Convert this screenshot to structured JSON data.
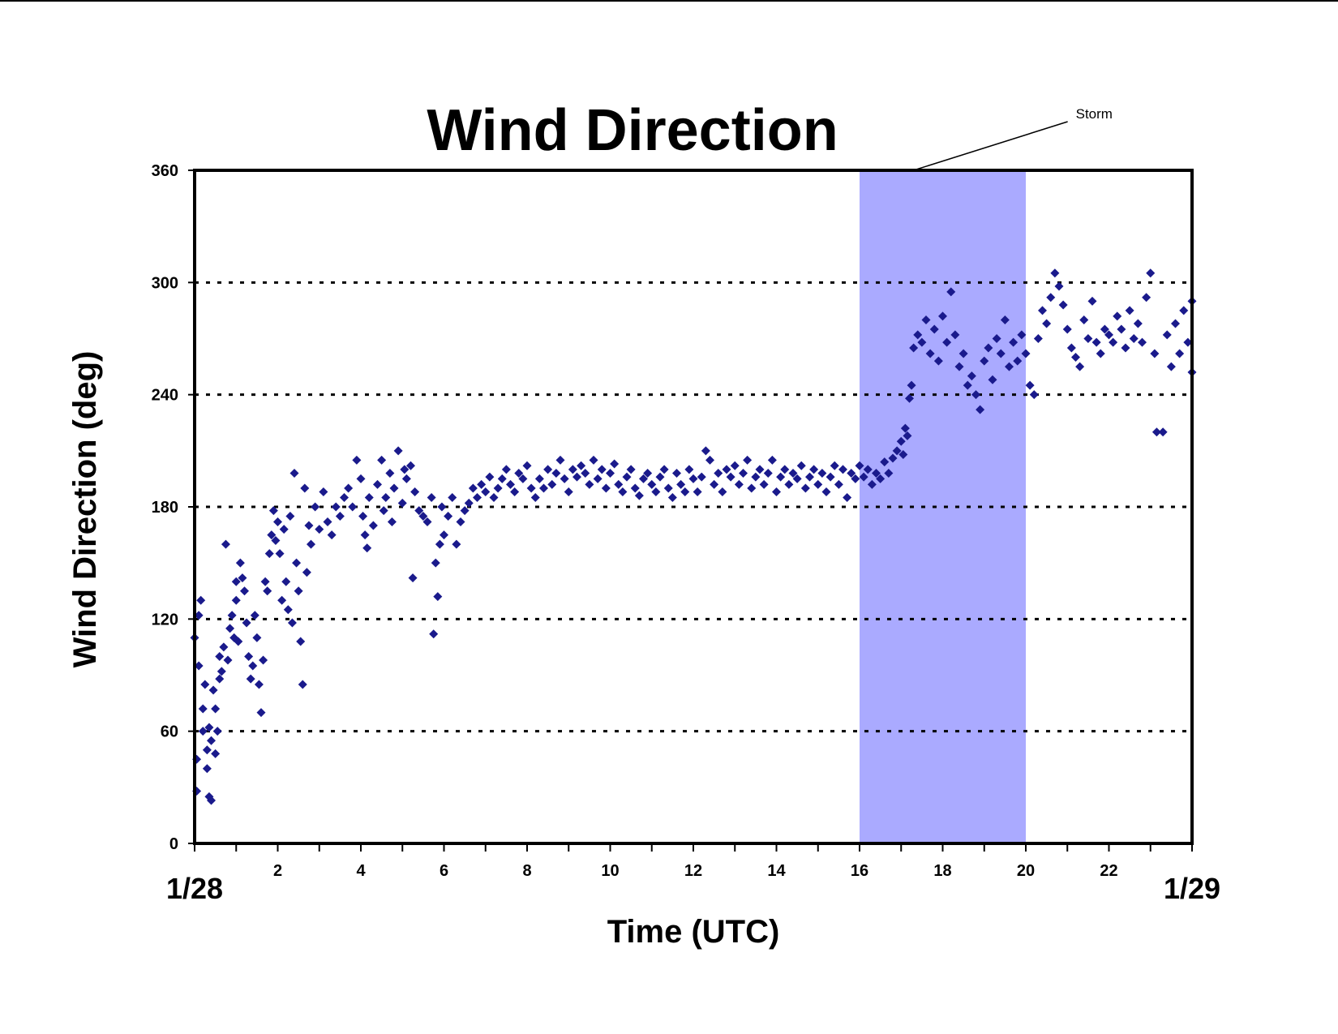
{
  "chart_data": {
    "type": "scatter",
    "title": "Wind Direction",
    "xlabel": "Time (UTC)",
    "ylabel": "Wind Direction (deg)",
    "xlim": [
      0,
      24
    ],
    "ylim": [
      0,
      360
    ],
    "x_ticks": [
      2,
      4,
      6,
      8,
      10,
      12,
      14,
      16,
      18,
      20,
      22
    ],
    "x_tick_labels": [
      "2",
      "4",
      "6",
      "8",
      "10",
      "12",
      "14",
      "16",
      "18",
      "20",
      "22"
    ],
    "x_minor_step": 1,
    "date_labels": [
      {
        "x": 0,
        "text": "1/28"
      },
      {
        "x": 24,
        "text": "1/29"
      }
    ],
    "y_ticks": [
      0,
      60,
      120,
      180,
      240,
      300,
      360
    ],
    "y_tick_labels": [
      "0",
      "60",
      "120",
      "180",
      "240",
      "300",
      "360"
    ],
    "grid": "horizontal dotted at 60, 120, 180, 240, 300",
    "legend": "none",
    "marker_color": "#1a1a8c",
    "marker": "diamond",
    "shaded_region": {
      "x_start": 16,
      "x_end": 20,
      "color": "#aaaaff"
    },
    "annotation": {
      "text": "Storm",
      "x": 17.3,
      "y": 360
    },
    "series": [
      {
        "points": [
          [
            0.0,
            110
          ],
          [
            0.05,
            28
          ],
          [
            0.05,
            45
          ],
          [
            0.1,
            95
          ],
          [
            0.1,
            122
          ],
          [
            0.15,
            130
          ],
          [
            0.2,
            72
          ],
          [
            0.2,
            60
          ],
          [
            0.25,
            85
          ],
          [
            0.3,
            50
          ],
          [
            0.3,
            40
          ],
          [
            0.35,
            25
          ],
          [
            0.35,
            62
          ],
          [
            0.4,
            23
          ],
          [
            0.4,
            55
          ],
          [
            0.45,
            82
          ],
          [
            0.5,
            48
          ],
          [
            0.5,
            72
          ],
          [
            0.55,
            60
          ],
          [
            0.6,
            88
          ],
          [
            0.6,
            100
          ],
          [
            0.65,
            92
          ],
          [
            0.7,
            105
          ],
          [
            0.75,
            160
          ],
          [
            0.8,
            98
          ],
          [
            0.85,
            115
          ],
          [
            0.9,
            122
          ],
          [
            0.95,
            110
          ],
          [
            1.0,
            140
          ],
          [
            1.0,
            130
          ],
          [
            1.05,
            108
          ],
          [
            1.1,
            150
          ],
          [
            1.15,
            142
          ],
          [
            1.2,
            135
          ],
          [
            1.25,
            118
          ],
          [
            1.3,
            100
          ],
          [
            1.35,
            88
          ],
          [
            1.4,
            95
          ],
          [
            1.45,
            122
          ],
          [
            1.5,
            110
          ],
          [
            1.55,
            85
          ],
          [
            1.6,
            70
          ],
          [
            1.65,
            98
          ],
          [
            1.7,
            140
          ],
          [
            1.75,
            135
          ],
          [
            1.8,
            155
          ],
          [
            1.85,
            165
          ],
          [
            1.9,
            178
          ],
          [
            1.95,
            162
          ],
          [
            2.0,
            172
          ],
          [
            2.05,
            155
          ],
          [
            2.1,
            130
          ],
          [
            2.15,
            168
          ],
          [
            2.2,
            140
          ],
          [
            2.25,
            125
          ],
          [
            2.3,
            175
          ],
          [
            2.35,
            118
          ],
          [
            2.4,
            198
          ],
          [
            2.45,
            150
          ],
          [
            2.5,
            135
          ],
          [
            2.55,
            108
          ],
          [
            2.6,
            85
          ],
          [
            2.65,
            190
          ],
          [
            2.7,
            145
          ],
          [
            2.75,
            170
          ],
          [
            2.8,
            160
          ],
          [
            2.9,
            180
          ],
          [
            3.0,
            168
          ],
          [
            3.1,
            188
          ],
          [
            3.2,
            172
          ],
          [
            3.3,
            165
          ],
          [
            3.4,
            180
          ],
          [
            3.5,
            175
          ],
          [
            3.6,
            185
          ],
          [
            3.7,
            190
          ],
          [
            3.8,
            180
          ],
          [
            3.9,
            205
          ],
          [
            4.0,
            195
          ],
          [
            4.05,
            175
          ],
          [
            4.1,
            165
          ],
          [
            4.15,
            158
          ],
          [
            4.2,
            185
          ],
          [
            4.3,
            170
          ],
          [
            4.4,
            192
          ],
          [
            4.5,
            205
          ],
          [
            4.55,
            178
          ],
          [
            4.6,
            185
          ],
          [
            4.7,
            198
          ],
          [
            4.75,
            172
          ],
          [
            4.8,
            190
          ],
          [
            4.9,
            210
          ],
          [
            5.0,
            182
          ],
          [
            5.05,
            200
          ],
          [
            5.1,
            195
          ],
          [
            5.2,
            202
          ],
          [
            5.25,
            142
          ],
          [
            5.3,
            188
          ],
          [
            5.4,
            178
          ],
          [
            5.5,
            175
          ],
          [
            5.6,
            172
          ],
          [
            5.7,
            185
          ],
          [
            5.75,
            112
          ],
          [
            5.8,
            150
          ],
          [
            5.85,
            132
          ],
          [
            5.9,
            160
          ],
          [
            5.95,
            180
          ],
          [
            6.0,
            165
          ],
          [
            6.1,
            175
          ],
          [
            6.2,
            185
          ],
          [
            6.3,
            160
          ],
          [
            6.4,
            172
          ],
          [
            6.5,
            178
          ],
          [
            6.6,
            182
          ],
          [
            6.7,
            190
          ],
          [
            6.8,
            185
          ],
          [
            6.9,
            192
          ],
          [
            7.0,
            188
          ],
          [
            7.1,
            196
          ],
          [
            7.2,
            185
          ],
          [
            7.3,
            190
          ],
          [
            7.4,
            195
          ],
          [
            7.5,
            200
          ],
          [
            7.6,
            192
          ],
          [
            7.7,
            188
          ],
          [
            7.8,
            198
          ],
          [
            7.9,
            195
          ],
          [
            8.0,
            202
          ],
          [
            8.1,
            190
          ],
          [
            8.2,
            185
          ],
          [
            8.3,
            195
          ],
          [
            8.4,
            190
          ],
          [
            8.5,
            200
          ],
          [
            8.6,
            192
          ],
          [
            8.7,
            198
          ],
          [
            8.8,
            205
          ],
          [
            8.9,
            195
          ],
          [
            9.0,
            188
          ],
          [
            9.1,
            200
          ],
          [
            9.2,
            196
          ],
          [
            9.3,
            202
          ],
          [
            9.4,
            198
          ],
          [
            9.5,
            192
          ],
          [
            9.6,
            205
          ],
          [
            9.7,
            195
          ],
          [
            9.8,
            200
          ],
          [
            9.9,
            190
          ],
          [
            10.0,
            198
          ],
          [
            10.1,
            203
          ],
          [
            10.2,
            192
          ],
          [
            10.3,
            188
          ],
          [
            10.4,
            196
          ],
          [
            10.5,
            200
          ],
          [
            10.6,
            190
          ],
          [
            10.7,
            186
          ],
          [
            10.8,
            195
          ],
          [
            10.9,
            198
          ],
          [
            11.0,
            192
          ],
          [
            11.1,
            188
          ],
          [
            11.2,
            196
          ],
          [
            11.3,
            200
          ],
          [
            11.4,
            190
          ],
          [
            11.5,
            185
          ],
          [
            11.6,
            198
          ],
          [
            11.7,
            192
          ],
          [
            11.8,
            188
          ],
          [
            11.9,
            200
          ],
          [
            12.0,
            195
          ],
          [
            12.1,
            188
          ],
          [
            12.2,
            196
          ],
          [
            12.3,
            210
          ],
          [
            12.4,
            205
          ],
          [
            12.5,
            192
          ],
          [
            12.6,
            198
          ],
          [
            12.7,
            188
          ],
          [
            12.8,
            200
          ],
          [
            12.9,
            196
          ],
          [
            13.0,
            202
          ],
          [
            13.1,
            192
          ],
          [
            13.2,
            198
          ],
          [
            13.3,
            205
          ],
          [
            13.4,
            190
          ],
          [
            13.5,
            196
          ],
          [
            13.6,
            200
          ],
          [
            13.7,
            192
          ],
          [
            13.8,
            198
          ],
          [
            13.9,
            205
          ],
          [
            14.0,
            188
          ],
          [
            14.1,
            196
          ],
          [
            14.2,
            200
          ],
          [
            14.3,
            192
          ],
          [
            14.4,
            198
          ],
          [
            14.5,
            195
          ],
          [
            14.6,
            202
          ],
          [
            14.7,
            190
          ],
          [
            14.8,
            196
          ],
          [
            14.9,
            200
          ],
          [
            15.0,
            192
          ],
          [
            15.1,
            198
          ],
          [
            15.2,
            188
          ],
          [
            15.3,
            196
          ],
          [
            15.4,
            202
          ],
          [
            15.5,
            192
          ],
          [
            15.6,
            200
          ],
          [
            15.7,
            185
          ],
          [
            15.8,
            198
          ],
          [
            15.9,
            195
          ],
          [
            16.0,
            202
          ],
          [
            16.1,
            196
          ],
          [
            16.2,
            200
          ],
          [
            16.3,
            192
          ],
          [
            16.4,
            198
          ],
          [
            16.5,
            195
          ],
          [
            16.6,
            204
          ],
          [
            16.7,
            198
          ],
          [
            16.8,
            206
          ],
          [
            16.9,
            210
          ],
          [
            17.0,
            215
          ],
          [
            17.05,
            208
          ],
          [
            17.1,
            222
          ],
          [
            17.15,
            218
          ],
          [
            17.2,
            238
          ],
          [
            17.25,
            245
          ],
          [
            17.3,
            265
          ],
          [
            17.4,
            272
          ],
          [
            17.5,
            268
          ],
          [
            17.6,
            280
          ],
          [
            17.7,
            262
          ],
          [
            17.8,
            275
          ],
          [
            17.9,
            258
          ],
          [
            18.0,
            282
          ],
          [
            18.1,
            268
          ],
          [
            18.2,
            295
          ],
          [
            18.3,
            272
          ],
          [
            18.4,
            255
          ],
          [
            18.5,
            262
          ],
          [
            18.6,
            245
          ],
          [
            18.7,
            250
          ],
          [
            18.8,
            240
          ],
          [
            18.9,
            232
          ],
          [
            19.0,
            258
          ],
          [
            19.1,
            265
          ],
          [
            19.2,
            248
          ],
          [
            19.3,
            270
          ],
          [
            19.4,
            262
          ],
          [
            19.5,
            280
          ],
          [
            19.6,
            255
          ],
          [
            19.7,
            268
          ],
          [
            19.8,
            258
          ],
          [
            19.9,
            272
          ],
          [
            20.0,
            262
          ],
          [
            20.1,
            245
          ],
          [
            20.2,
            240
          ],
          [
            20.3,
            270
          ],
          [
            20.4,
            285
          ],
          [
            20.5,
            278
          ],
          [
            20.6,
            292
          ],
          [
            20.7,
            305
          ],
          [
            20.8,
            298
          ],
          [
            20.9,
            288
          ],
          [
            21.0,
            275
          ],
          [
            21.1,
            265
          ],
          [
            21.2,
            260
          ],
          [
            21.3,
            255
          ],
          [
            21.4,
            280
          ],
          [
            21.5,
            270
          ],
          [
            21.6,
            290
          ],
          [
            21.7,
            268
          ],
          [
            21.8,
            262
          ],
          [
            21.9,
            275
          ],
          [
            22.0,
            272
          ],
          [
            22.1,
            268
          ],
          [
            22.2,
            282
          ],
          [
            22.3,
            275
          ],
          [
            22.4,
            265
          ],
          [
            22.5,
            285
          ],
          [
            22.6,
            270
          ],
          [
            22.7,
            278
          ],
          [
            22.8,
            268
          ],
          [
            22.9,
            292
          ],
          [
            23.0,
            305
          ],
          [
            23.1,
            262
          ],
          [
            23.15,
            220
          ],
          [
            23.3,
            220
          ],
          [
            23.4,
            272
          ],
          [
            23.5,
            255
          ],
          [
            23.6,
            278
          ],
          [
            23.7,
            262
          ],
          [
            23.8,
            285
          ],
          [
            23.9,
            268
          ],
          [
            24.0,
            290
          ],
          [
            24.0,
            252
          ]
        ]
      }
    ]
  }
}
